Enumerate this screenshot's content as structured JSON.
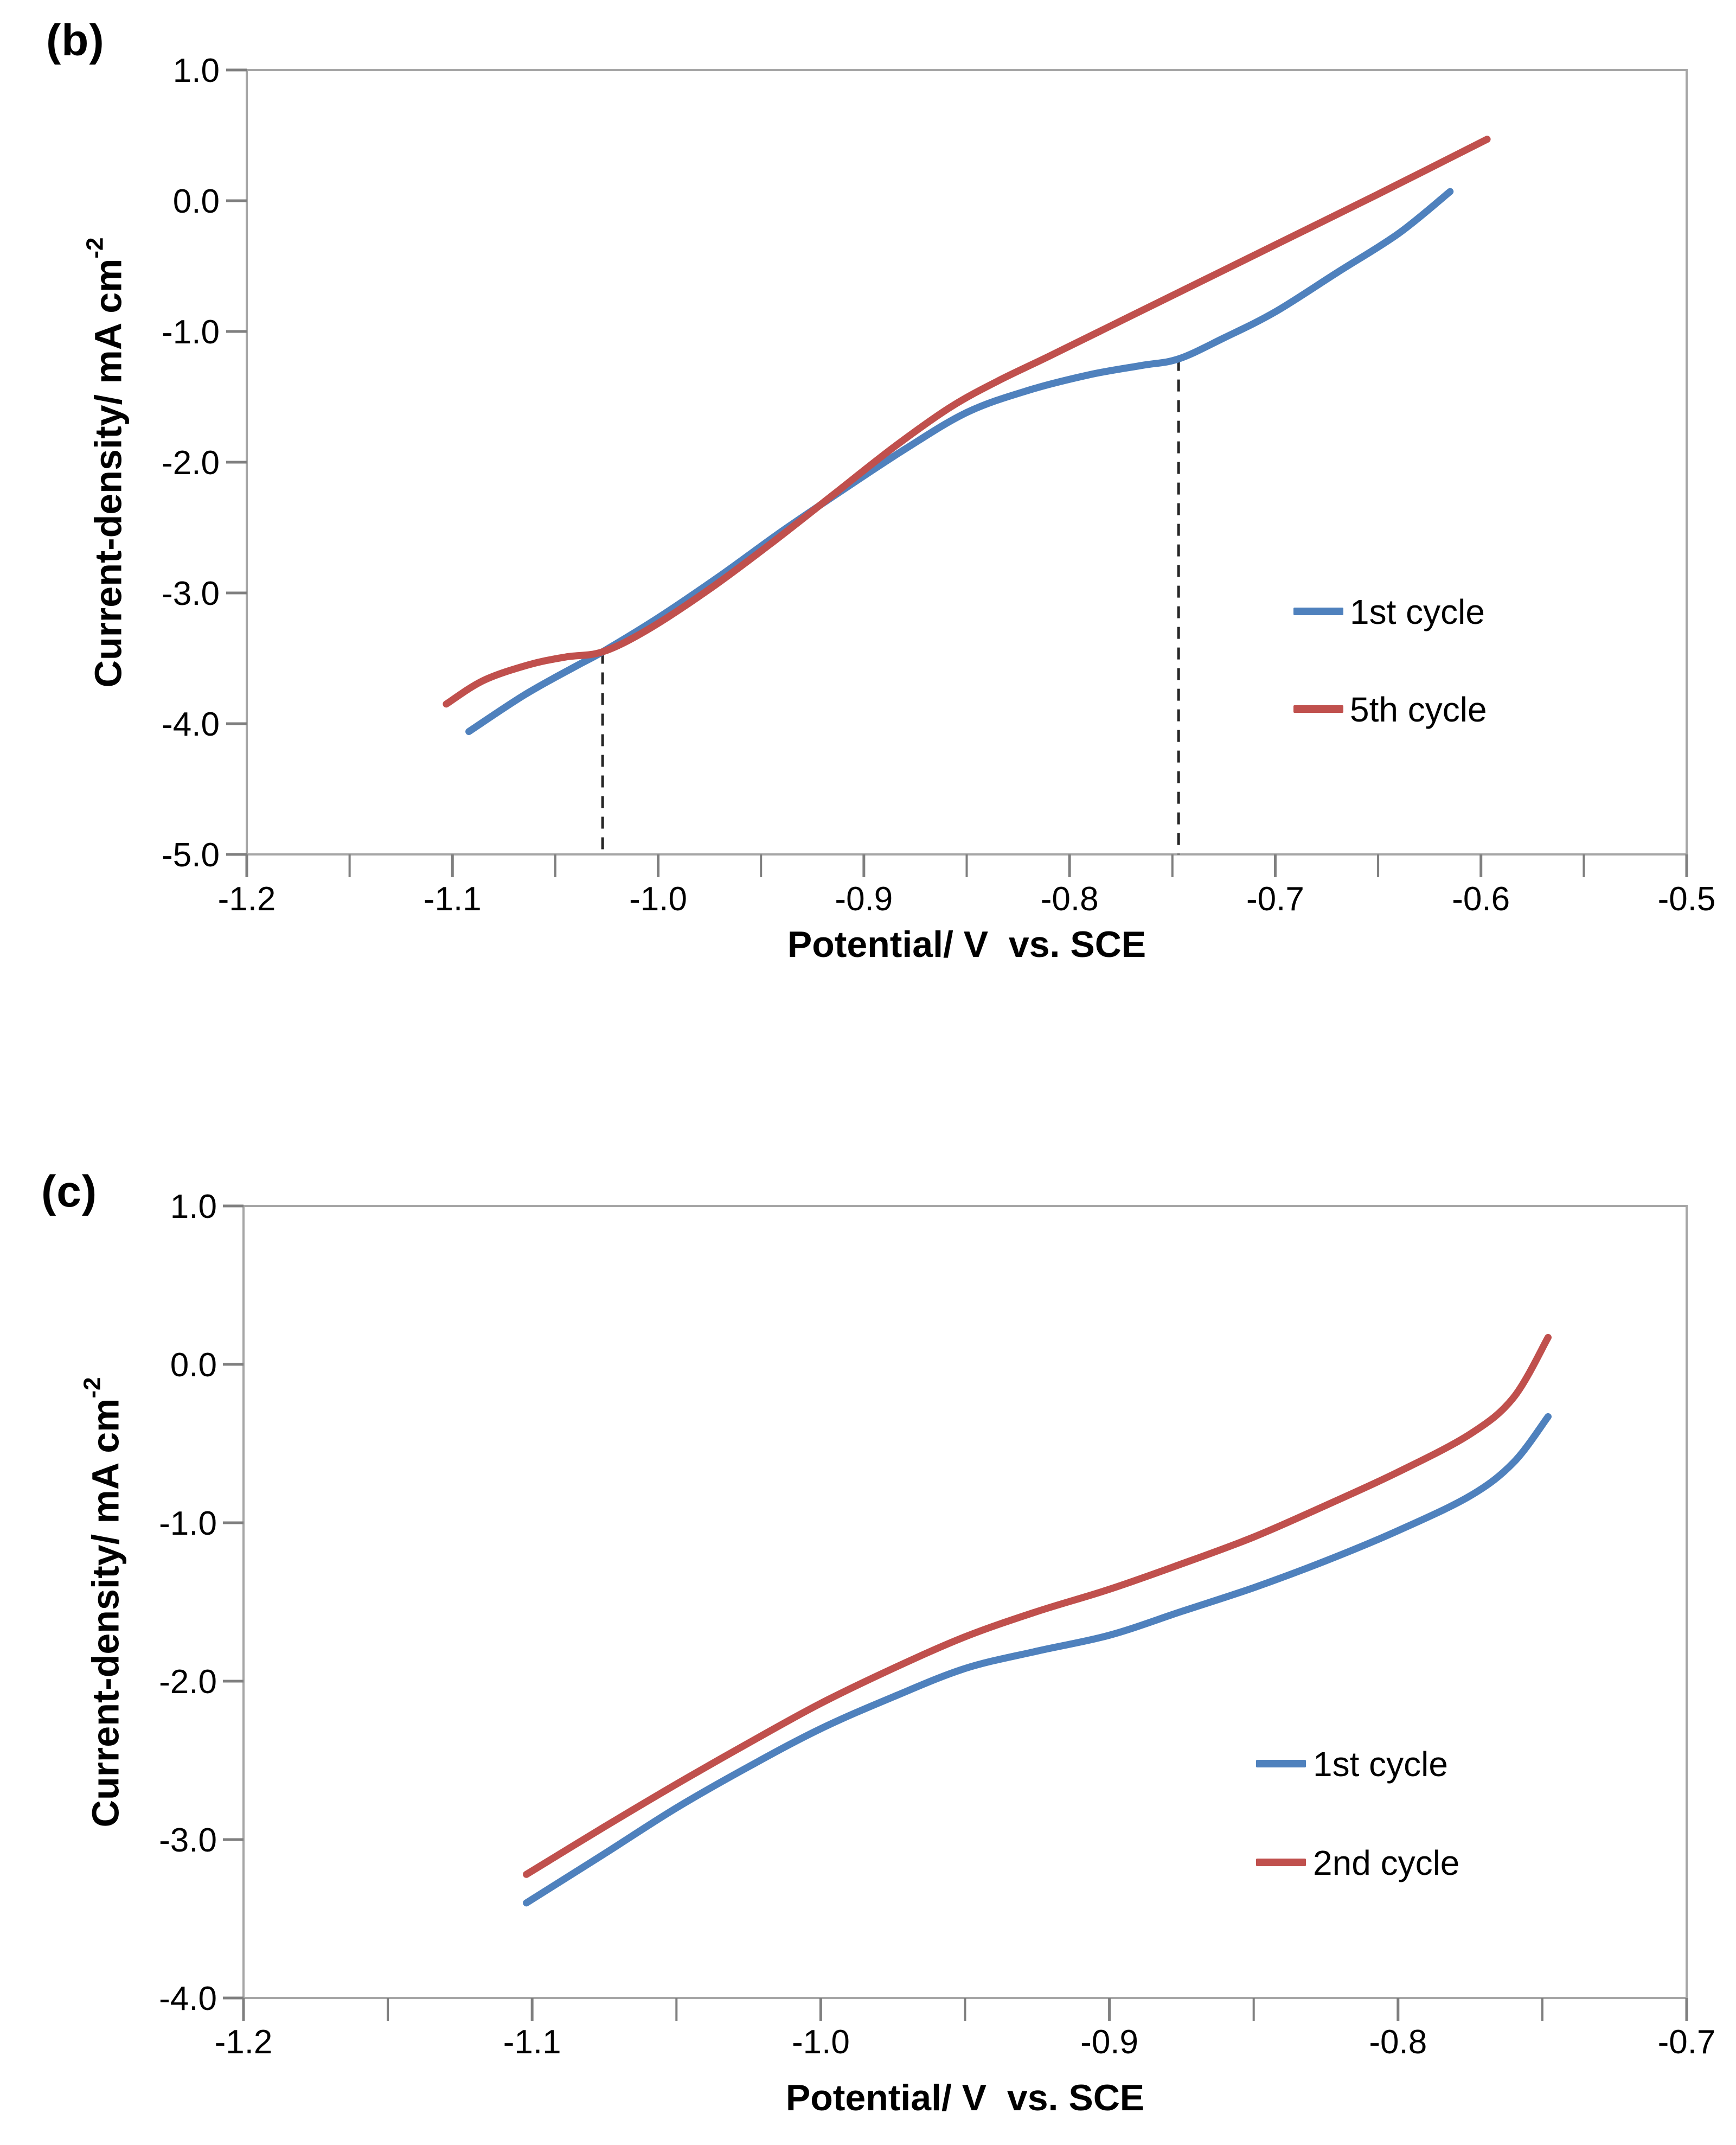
{
  "colors": {
    "series_blue": "#4f81bd",
    "series_red": "#c0504d",
    "plot_border": "#a6a6a6",
    "tick": "#7f7f7f",
    "dashed_guide": "#262626",
    "text": "#000000",
    "background": "#ffffff"
  },
  "chart_data": [
    {
      "type": "line",
      "panel_label": "(b)",
      "xlabel": "Potential/ V  vs. SCE",
      "ylabel_main": "Current-density/ mA cm",
      "ylabel_sup": "-2",
      "xlim": [
        -1.2,
        -0.5
      ],
      "ylim": [
        -5.0,
        1.0
      ],
      "grid": false,
      "legend_position": "inside-right",
      "x_major_ticks": [
        -1.2,
        -1.1,
        -1.0,
        -0.9,
        -0.8,
        -0.7,
        -0.6,
        -0.5
      ],
      "x_tick_labels": [
        "-1.2",
        "-1.1",
        "-1.0",
        "-0.9",
        "-0.8",
        "-0.7",
        "-0.6",
        "-0.5"
      ],
      "x_minor_ticks": [
        -1.15,
        -1.05,
        -0.95,
        -0.85,
        -0.75,
        -0.65,
        -0.55
      ],
      "y_ticks": [
        1.0,
        0.0,
        -1.0,
        -2.0,
        -3.0,
        -4.0,
        -5.0
      ],
      "y_tick_labels": [
        "1.0",
        "0.0",
        "-1.0",
        "-2.0",
        "-3.0",
        "-4.0",
        "-5.0"
      ],
      "series": [
        {
          "name": "1st cycle",
          "color": "#4f81bd",
          "points": [
            [
              -1.092,
              -4.06
            ],
            [
              -1.065,
              -3.78
            ],
            [
              -1.04,
              -3.56
            ],
            [
              -1.027,
              -3.45
            ],
            [
              -1.0,
              -3.19
            ],
            [
              -0.97,
              -2.87
            ],
            [
              -0.94,
              -2.53
            ],
            [
              -0.91,
              -2.21
            ],
            [
              -0.88,
              -1.9
            ],
            [
              -0.85,
              -1.62
            ],
            [
              -0.82,
              -1.45
            ],
            [
              -0.79,
              -1.33
            ],
            [
              -0.765,
              -1.26
            ],
            [
              -0.747,
              -1.21
            ],
            [
              -0.725,
              -1.05
            ],
            [
              -0.7,
              -0.85
            ],
            [
              -0.67,
              -0.55
            ],
            [
              -0.64,
              -0.25
            ],
            [
              -0.615,
              0.07
            ]
          ]
        },
        {
          "name": "5th cycle",
          "color": "#c0504d",
          "points": [
            [
              -1.103,
              -3.85
            ],
            [
              -1.085,
              -3.67
            ],
            [
              -1.063,
              -3.55
            ],
            [
              -1.045,
              -3.49
            ],
            [
              -1.027,
              -3.45
            ],
            [
              -1.005,
              -3.28
            ],
            [
              -0.975,
              -2.97
            ],
            [
              -0.945,
              -2.62
            ],
            [
              -0.915,
              -2.25
            ],
            [
              -0.885,
              -1.88
            ],
            [
              -0.858,
              -1.58
            ],
            [
              -0.835,
              -1.38
            ],
            [
              -0.81,
              -1.19
            ],
            [
              -0.77,
              -0.88
            ],
            [
              -0.73,
              -0.57
            ],
            [
              -0.69,
              -0.26
            ],
            [
              -0.65,
              0.05
            ],
            [
              -0.597,
              0.47
            ]
          ]
        }
      ],
      "dashed_guides": [
        {
          "x": -1.027,
          "y_from": -3.45,
          "y_to": -5.0
        },
        {
          "x": -0.747,
          "y_from": -1.21,
          "y_to": -5.0
        }
      ]
    },
    {
      "type": "line",
      "panel_label": "(c)",
      "xlabel": "Potential/ V  vs. SCE",
      "ylabel_main": "Current-density/ mA cm",
      "ylabel_sup": "-2",
      "xlim": [
        -1.2,
        -0.7
      ],
      "ylim": [
        -4.0,
        1.0
      ],
      "grid": false,
      "legend_position": "inside-right",
      "x_major_ticks": [
        -1.2,
        -1.1,
        -1.0,
        -0.9,
        -0.8,
        -0.7
      ],
      "x_tick_labels": [
        "-1.2",
        "-1.1",
        "-1.0",
        "-0.9",
        "-0.8",
        "-0.7"
      ],
      "x_minor_ticks": [
        -1.15,
        -1.05,
        -0.95,
        -0.85,
        -0.75
      ],
      "y_ticks": [
        1.0,
        0.0,
        -1.0,
        -2.0,
        -3.0,
        -4.0
      ],
      "y_tick_labels": [
        "1.0",
        "0.0",
        "-1.0",
        "-2.0",
        "-3.0",
        "-4.0"
      ],
      "series": [
        {
          "name": "1st cycle",
          "color": "#4f81bd",
          "points": [
            [
              -1.102,
              -3.4
            ],
            [
              -1.075,
              -3.09
            ],
            [
              -1.05,
              -2.8
            ],
            [
              -1.025,
              -2.54
            ],
            [
              -1.0,
              -2.3
            ],
            [
              -0.975,
              -2.1
            ],
            [
              -0.95,
              -1.92
            ],
            [
              -0.925,
              -1.81
            ],
            [
              -0.9,
              -1.71
            ],
            [
              -0.875,
              -1.56
            ],
            [
              -0.85,
              -1.41
            ],
            [
              -0.825,
              -1.24
            ],
            [
              -0.8,
              -1.05
            ],
            [
              -0.775,
              -0.83
            ],
            [
              -0.76,
              -0.62
            ],
            [
              -0.748,
              -0.33
            ]
          ]
        },
        {
          "name": "2nd cycle",
          "color": "#c0504d",
          "points": [
            [
              -1.102,
              -3.22
            ],
            [
              -1.075,
              -2.92
            ],
            [
              -1.05,
              -2.65
            ],
            [
              -1.025,
              -2.39
            ],
            [
              -1.0,
              -2.14
            ],
            [
              -0.975,
              -1.92
            ],
            [
              -0.95,
              -1.72
            ],
            [
              -0.925,
              -1.56
            ],
            [
              -0.9,
              -1.42
            ],
            [
              -0.875,
              -1.26
            ],
            [
              -0.85,
              -1.09
            ],
            [
              -0.825,
              -0.89
            ],
            [
              -0.8,
              -0.68
            ],
            [
              -0.775,
              -0.44
            ],
            [
              -0.76,
              -0.21
            ],
            [
              -0.748,
              0.17
            ]
          ]
        }
      ],
      "dashed_guides": []
    }
  ]
}
